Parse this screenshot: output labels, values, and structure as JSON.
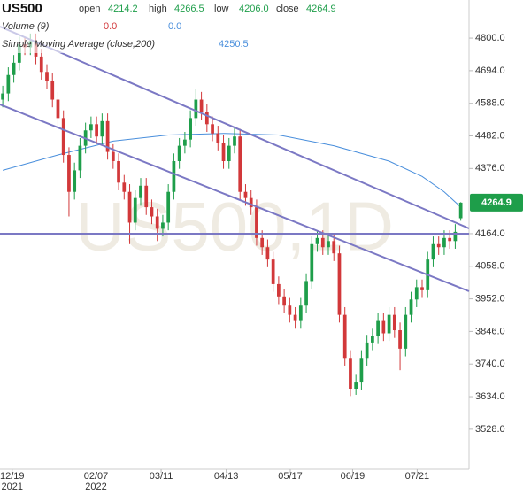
{
  "chart_data": {
    "type": "candlestick",
    "watermark": "US500,1D",
    "header": {
      "symbol": "US500",
      "fields": [
        {
          "label": "open",
          "value": 4214.2
        },
        {
          "label": "high",
          "value": 4266.5
        },
        {
          "label": "low",
          "value": "4206.0"
        },
        {
          "label": "close",
          "value": 4264.9
        }
      ],
      "volume_label": "Volume (9)",
      "volume_values": [
        "0.0",
        "0.0"
      ],
      "sma_label": "Simple Moving Average (close,200)",
      "sma_value": 4250.5
    },
    "up_color": "#1e9e4a",
    "down_color": "#d2383a",
    "sma_color": "#4a8fdc",
    "ohlc": [
      [
        4600,
        4645,
        4575,
        4620
      ],
      [
        4620,
        4705,
        4595,
        4680
      ],
      [
        4680,
        4745,
        4655,
        4720
      ],
      [
        4720,
        4805,
        4695,
        4780
      ],
      [
        4780,
        4805,
        4745,
        4770
      ],
      [
        4770,
        4815,
        4745,
        4790
      ],
      [
        4790,
        4815,
        4715,
        4740
      ],
      [
        4740,
        4765,
        4665,
        4690
      ],
      [
        4690,
        4715,
        4635,
        4660
      ],
      [
        4660,
        4685,
        4575,
        4600
      ],
      [
        4600,
        4625,
        4515,
        4540
      ],
      [
        4540,
        4565,
        4395,
        4420
      ],
      [
        4420,
        4445,
        4220,
        4300
      ],
      [
        4300,
        4395,
        4275,
        4370
      ],
      [
        4370,
        4475,
        4345,
        4450
      ],
      [
        4450,
        4525,
        4425,
        4500
      ],
      [
        4500,
        4545,
        4475,
        4520
      ],
      [
        4520,
        4545,
        4455,
        4480
      ],
      [
        4480,
        4555,
        4455,
        4530
      ],
      [
        4530,
        4555,
        4405,
        4430
      ],
      [
        4430,
        4455,
        4375,
        4400
      ],
      [
        4400,
        4425,
        4305,
        4330
      ],
      [
        4330,
        4355,
        4275,
        4300
      ],
      [
        4300,
        4325,
        4130,
        4200
      ],
      [
        4200,
        4305,
        4175,
        4280
      ],
      [
        4280,
        4345,
        4255,
        4320
      ],
      [
        4320,
        4345,
        4225,
        4250
      ],
      [
        4250,
        4275,
        4195,
        4220
      ],
      [
        4220,
        4245,
        4140,
        4180
      ],
      [
        4180,
        4225,
        4155,
        4200
      ],
      [
        4200,
        4325,
        4175,
        4300
      ],
      [
        4300,
        4425,
        4275,
        4400
      ],
      [
        4400,
        4475,
        4375,
        4450
      ],
      [
        4450,
        4495,
        4425,
        4470
      ],
      [
        4470,
        4565,
        4445,
        4540
      ],
      [
        4540,
        4635,
        4515,
        4600
      ],
      [
        4600,
        4625,
        4535,
        4560
      ],
      [
        4560,
        4585,
        4495,
        4520
      ],
      [
        4520,
        4545,
        4465,
        4490
      ],
      [
        4490,
        4515,
        4435,
        4460
      ],
      [
        4460,
        4485,
        4375,
        4400
      ],
      [
        4400,
        4475,
        4375,
        4450
      ],
      [
        4450,
        4510,
        4425,
        4480
      ],
      [
        4480,
        4505,
        4275,
        4300
      ],
      [
        4300,
        4325,
        4255,
        4280
      ],
      [
        4280,
        4305,
        4225,
        4250
      ],
      [
        4250,
        4275,
        4125,
        4150
      ],
      [
        4150,
        4175,
        4095,
        4120
      ],
      [
        4120,
        4145,
        4055,
        4080
      ],
      [
        4080,
        4105,
        3975,
        4000
      ],
      [
        4000,
        4025,
        3935,
        3960
      ],
      [
        3960,
        3985,
        3905,
        3930
      ],
      [
        3930,
        3955,
        3875,
        3900
      ],
      [
        3900,
        3925,
        3855,
        3880
      ],
      [
        3880,
        3955,
        3855,
        3930
      ],
      [
        3930,
        4035,
        3905,
        4010
      ],
      [
        4010,
        4155,
        3985,
        4130
      ],
      [
        4130,
        4175,
        4105,
        4150
      ],
      [
        4150,
        4175,
        4095,
        4120
      ],
      [
        4120,
        4165,
        4095,
        4140
      ],
      [
        4140,
        4165,
        4075,
        4100
      ],
      [
        4100,
        4125,
        3875,
        3900
      ],
      [
        3900,
        3925,
        3735,
        3760
      ],
      [
        3760,
        3785,
        3636,
        3660
      ],
      [
        3660,
        3705,
        3640,
        3680
      ],
      [
        3680,
        3785,
        3655,
        3760
      ],
      [
        3760,
        3835,
        3735,
        3810
      ],
      [
        3810,
        3855,
        3785,
        3830
      ],
      [
        3830,
        3905,
        3805,
        3880
      ],
      [
        3880,
        3905,
        3815,
        3840
      ],
      [
        3840,
        3925,
        3815,
        3900
      ],
      [
        3900,
        3925,
        3825,
        3850
      ],
      [
        3850,
        3875,
        3720,
        3790
      ],
      [
        3790,
        3925,
        3765,
        3900
      ],
      [
        3900,
        3975,
        3875,
        3950
      ],
      [
        3950,
        4015,
        3925,
        3990
      ],
      [
        3990,
        4015,
        3955,
        3980
      ],
      [
        3980,
        4105,
        3955,
        4080
      ],
      [
        4080,
        4155,
        4055,
        4130
      ],
      [
        4130,
        4155,
        4095,
        4120
      ],
      [
        4120,
        4175,
        4095,
        4150
      ],
      [
        4150,
        4175,
        4115,
        4140
      ],
      [
        4140,
        4195,
        4115,
        4170
      ],
      [
        4214.2,
        4266.5,
        4206.0,
        4264.9
      ]
    ],
    "sma": {
      "x": [
        0,
        10,
        20,
        30,
        40,
        50,
        60,
        70,
        76,
        80,
        83
      ],
      "values": [
        4370,
        4420,
        4465,
        4485,
        4490,
        4485,
        4450,
        4400,
        4350,
        4300,
        4250.5
      ]
    },
    "last_price": {
      "value": 4264.9,
      "label": "4264.9"
    },
    "xlim": [
      -0.5,
      84.5
    ],
    "xticks": [
      {
        "value": 1.7,
        "label": "12/19",
        "sublabel": "2021"
      },
      {
        "value": 16.9,
        "label": "02/07",
        "sublabel": "2022"
      },
      {
        "value": 28.7,
        "label": "03/11"
      },
      {
        "value": 40.5,
        "label": "04/13"
      },
      {
        "value": 52.1,
        "label": "05/17"
      },
      {
        "value": 63.4,
        "label": "06/19"
      },
      {
        "value": 75.1,
        "label": "07/21"
      }
    ],
    "ylim": [
      3398,
      4924
    ],
    "yticks": [
      {
        "value": 4800,
        "label": "4800.0"
      },
      {
        "value": 4694,
        "label": "4694.0"
      },
      {
        "value": 4588,
        "label": "4588.0"
      },
      {
        "value": 4482,
        "label": "4482.0"
      },
      {
        "value": 4376,
        "label": "4376.0"
      },
      {
        "value": 4164,
        "label": "4164.0"
      },
      {
        "value": 4058,
        "label": "4058.0"
      },
      {
        "value": 3952,
        "label": "3952.0"
      },
      {
        "value": 3846,
        "label": "3846.0"
      },
      {
        "value": 3740,
        "label": "3740.0"
      },
      {
        "value": 3634,
        "label": "3634.0"
      },
      {
        "value": 3528,
        "label": "3528.0"
      }
    ]
  }
}
